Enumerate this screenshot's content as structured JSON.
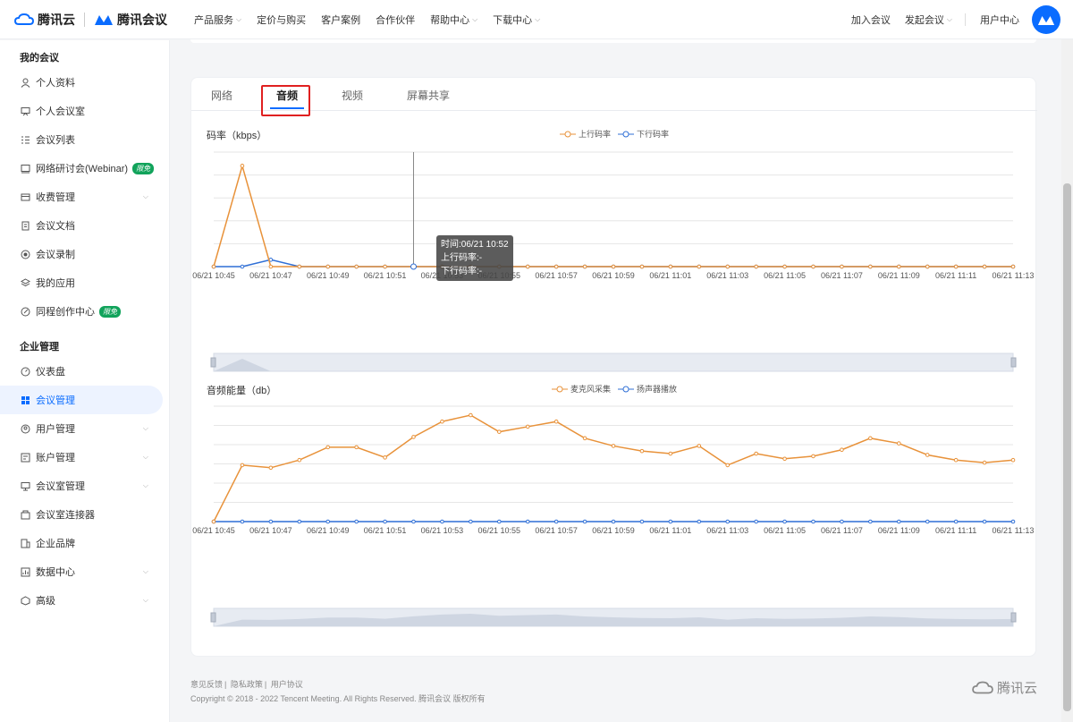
{
  "header": {
    "brand_primary": "腾讯云",
    "brand_secondary": "腾讯会议",
    "nav": [
      "产品服务",
      "定价与购买",
      "客户案例",
      "合作伙伴",
      "帮助中心",
      "下载中心"
    ],
    "nav_has_caret": [
      true,
      false,
      false,
      false,
      true,
      true
    ],
    "right": [
      "加入会议",
      "发起会议",
      "用户中心"
    ]
  },
  "sidebar": {
    "section1": "我的会议",
    "items1": [
      {
        "label": "个人资料",
        "icon": "user-icon"
      },
      {
        "label": "个人会议室",
        "icon": "meeting-room-icon"
      },
      {
        "label": "会议列表",
        "icon": "list-icon"
      },
      {
        "label": "网络研讨会(Webinar)",
        "icon": "webinar-icon",
        "badge": "限免"
      },
      {
        "label": "收费管理",
        "icon": "fee-icon",
        "chevron": true
      },
      {
        "label": "会议文档",
        "icon": "document-icon"
      },
      {
        "label": "会议录制",
        "icon": "record-icon"
      },
      {
        "label": "我的应用",
        "icon": "apps-icon"
      },
      {
        "label": "同程创作中心",
        "icon": "create-icon",
        "badge": "限免"
      }
    ],
    "section2": "企业管理",
    "items2": [
      {
        "label": "仪表盘",
        "icon": "dashboard-icon"
      },
      {
        "label": "会议管理",
        "icon": "grid-icon",
        "active": true
      },
      {
        "label": "用户管理",
        "icon": "users-icon",
        "chevron": true
      },
      {
        "label": "账户管理",
        "icon": "account-icon",
        "chevron": true
      },
      {
        "label": "会议室管理",
        "icon": "room-manage-icon",
        "chevron": true
      },
      {
        "label": "会议室连接器",
        "icon": "connector-icon"
      },
      {
        "label": "企业品牌",
        "icon": "brand-icon"
      },
      {
        "label": "数据中心",
        "icon": "data-icon",
        "chevron": true
      },
      {
        "label": "高级",
        "icon": "advanced-icon",
        "chevron": true
      }
    ]
  },
  "tabs": [
    "网络",
    "音频",
    "视频",
    "屏幕共享"
  ],
  "active_tab": "音频",
  "tooltip": {
    "time": "时间:06/21 10:52",
    "up": "上行码率:-",
    "down": "下行码率:-"
  },
  "footer": {
    "links": [
      "意见反馈",
      "隐私政策",
      "用户协议"
    ],
    "copyright": "Copyright © 2018 - 2022 Tencent Meeting. All Rights Reserved. 腾讯会议 版权所有",
    "logo_text": "腾讯云"
  },
  "colors": {
    "accent": "#0a6cff",
    "series_orange": "#e8923a",
    "series_blue": "#2f6fd6",
    "badge_green": "#11a35b"
  },
  "chart_data": [
    {
      "type": "line",
      "title": "码率（kbps）",
      "x": [
        "06/21 10:45",
        "06/21 10:46",
        "06/21 10:47",
        "06/21 10:48",
        "06/21 10:49",
        "06/21 10:50",
        "06/21 10:51",
        "06/21 10:52",
        "06/21 10:53",
        "06/21 10:54",
        "06/21 10:55",
        "06/21 10:56",
        "06/21 10:57",
        "06/21 10:58",
        "06/21 10:59",
        "06/21 11:00",
        "06/21 11:01",
        "06/21 11:02",
        "06/21 11:03",
        "06/21 11:04",
        "06/21 11:05",
        "06/21 11:06",
        "06/21 11:07",
        "06/21 11:08",
        "06/21 11:09",
        "06/21 11:10",
        "06/21 11:11",
        "06/21 11:12",
        "06/21 11:13"
      ],
      "x_tick_labels": [
        "06/21 10:45",
        "06/21 10:47",
        "06/21 10:49",
        "06/21 10:51",
        "06/21 10:53",
        "06/21 10:55",
        "06/21 10:57",
        "06/21 10:59",
        "06/21 11:01",
        "06/21 11:03",
        "06/21 11:05",
        "06/21 11:07",
        "06/21 11:09",
        "06/21 11:11",
        "06/21 11:13"
      ],
      "series": [
        {
          "name": "上行码率",
          "values": [
            0,
            44,
            0,
            0,
            0,
            0,
            0,
            0,
            0,
            0,
            0,
            0,
            0,
            0,
            0,
            0,
            0,
            0,
            0,
            0,
            0,
            0,
            0,
            0,
            0,
            0,
            0,
            0,
            0
          ]
        },
        {
          "name": "下行码率",
          "values": [
            0,
            0,
            3,
            0,
            0,
            0,
            0,
            0,
            0,
            0,
            0,
            0,
            0,
            0,
            0,
            0,
            0,
            0,
            0,
            0,
            0,
            0,
            0,
            0,
            0,
            0,
            0,
            0,
            0
          ]
        }
      ],
      "ylim": [
        0,
        50
      ],
      "grid": true,
      "legend": "top-center",
      "hover_index": 7
    },
    {
      "type": "line",
      "title": "音频能量（db）",
      "x": [
        "06/21 10:45",
        "06/21 10:46",
        "06/21 10:47",
        "06/21 10:48",
        "06/21 10:49",
        "06/21 10:50",
        "06/21 10:51",
        "06/21 10:52",
        "06/21 10:53",
        "06/21 10:54",
        "06/21 10:55",
        "06/21 10:56",
        "06/21 10:57",
        "06/21 10:58",
        "06/21 10:59",
        "06/21 11:00",
        "06/21 11:01",
        "06/21 11:02",
        "06/21 11:03",
        "06/21 11:04",
        "06/21 11:05",
        "06/21 11:06",
        "06/21 11:07",
        "06/21 11:08",
        "06/21 11:09",
        "06/21 11:10",
        "06/21 11:11",
        "06/21 11:12",
        "06/21 11:13"
      ],
      "x_tick_labels": [
        "06/21 10:45",
        "06/21 10:47",
        "06/21 10:49",
        "06/21 10:51",
        "06/21 10:53",
        "06/21 10:55",
        "06/21 10:57",
        "06/21 10:59",
        "06/21 11:01",
        "06/21 11:03",
        "06/21 11:05",
        "06/21 11:07",
        "06/21 11:09",
        "06/21 11:11",
        "06/21 11:13"
      ],
      "series": [
        {
          "name": "麦克风采集",
          "values": [
            0,
            44,
            42,
            48,
            58,
            58,
            50,
            66,
            78,
            83,
            70,
            74,
            78,
            65,
            59,
            55,
            53,
            59,
            44,
            53,
            49,
            51,
            56,
            65,
            61,
            52,
            48,
            46,
            48
          ]
        },
        {
          "name": "扬声器播放",
          "values": [
            0,
            0,
            0,
            0,
            0,
            0,
            0,
            0,
            0,
            0,
            0,
            0,
            0,
            0,
            0,
            0,
            0,
            0,
            0,
            0,
            0,
            0,
            0,
            0,
            0,
            0,
            0,
            0,
            0
          ]
        }
      ],
      "ylim": [
        0,
        90
      ],
      "grid": true,
      "legend": "top-center"
    }
  ]
}
